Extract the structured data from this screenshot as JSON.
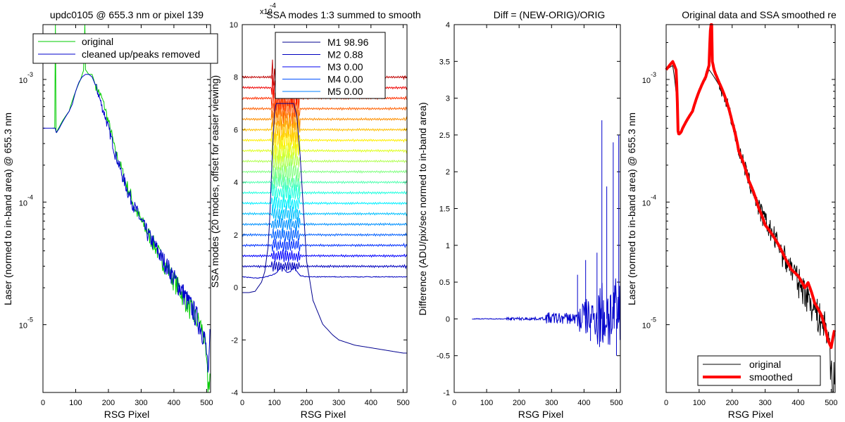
{
  "figure": {
    "background": "#ffffff",
    "axis_color": "#000000"
  },
  "chart_data": [
    {
      "type": "line",
      "title": "updc0105 @ 655.3 nm or pixel 139",
      "xlabel": "RSG Pixel",
      "ylabel": "Laser (normed to in-band area) @ 655.3 nm",
      "yscale": "log",
      "xlim": [
        0,
        512
      ],
      "ylim": [
        2.8e-06,
        0.0028
      ],
      "xticks": [
        0,
        100,
        200,
        300,
        400,
        500
      ],
      "yticks": [
        {
          "value": 0.001,
          "mantissa": "10",
          "exp": "-3"
        },
        {
          "value": 0.0001,
          "mantissa": "10",
          "exp": "-4"
        },
        {
          "value": 1e-05,
          "mantissa": "10",
          "exp": "-5"
        }
      ],
      "legend": {
        "position": "top",
        "entries": [
          {
            "label": "original",
            "color": "#00cc00"
          },
          {
            "label": "cleaned up/peaks removed",
            "color": "#0000cc"
          }
        ]
      },
      "series": [
        {
          "name": "original",
          "color": "#00cc00",
          "x": [
            30,
            34,
            37,
            38,
            40,
            42,
            45,
            50,
            60,
            80,
            100,
            115,
            120,
            125,
            128,
            130,
            140,
            150,
            160,
            180,
            200,
            220,
            250,
            280,
            300,
            330,
            360,
            400,
            430,
            460,
            480,
            490,
            500,
            505,
            510
          ],
          "y": [
            0.0004,
            0.0004,
            0.0004,
            0.0028,
            0.00038,
            0.00037,
            0.00039,
            0.00041,
            0.00046,
            0.00055,
            0.0008,
            0.001,
            0.0011,
            0.0012,
            0.0028,
            0.0012,
            0.0011,
            0.0011,
            0.0009,
            0.0007,
            0.00045,
            0.00026,
            0.00015,
            9e-05,
            7e-05,
            5e-05,
            3.5e-05,
            2.3e-05,
            1.7e-05,
            1.2e-05,
            1e-05,
            8.5e-06,
            4.5e-06,
            3e-06,
            4e-06
          ]
        },
        {
          "name": "cleaned up/peaks removed",
          "color": "#0000cc",
          "x": [
            0,
            20,
            38,
            40,
            42,
            50,
            60,
            70,
            80,
            90,
            100,
            110,
            120,
            130,
            140,
            150,
            160,
            170,
            180,
            200,
            220,
            240,
            260,
            280,
            300,
            320,
            340,
            360,
            380,
            400,
            420,
            440,
            460,
            480,
            490,
            500,
            505,
            510
          ],
          "y": [
            0.0004,
            0.0004,
            0.0004,
            0.00037,
            0.00037,
            0.0004,
            0.00045,
            0.0005,
            0.00055,
            0.00063,
            0.0008,
            0.00095,
            0.00105,
            0.0011,
            0.0011,
            0.00105,
            0.0009,
            0.00075,
            0.0006,
            0.0004,
            0.00025,
            0.00017,
            0.00012,
            9e-05,
            7e-05,
            5.5e-05,
            4.5e-05,
            3.6e-05,
            3e-05,
            2.4e-05,
            2e-05,
            1.6e-05,
            1.3e-05,
            1e-05,
            8.5e-06,
            6e-06,
            3e-06,
            8e-06
          ]
        }
      ]
    },
    {
      "type": "line",
      "title": "SSA modes 1:3 summed to smooth",
      "ylabel": "SSA modes (20 modes, offset for easier viewing)",
      "xlabel": "RSG Pixel",
      "xlim": [
        0,
        512
      ],
      "ylim": [
        -4,
        10
      ],
      "y_multiplier": "x10",
      "y_multiplier_exp": "-4",
      "xticks": [
        0,
        100,
        200,
        300,
        400,
        500
      ],
      "yticks": [
        -4,
        -2,
        0,
        2,
        4,
        6,
        8,
        10
      ],
      "legend": {
        "position": "top",
        "entries": [
          {
            "label": "M1 98.96",
            "color": "#00008f"
          },
          {
            "label": "M2 0.88",
            "color": "#0000bf"
          },
          {
            "label": "M3 0.00",
            "color": "#0000ef"
          },
          {
            "label": "M4 0.00",
            "color": "#0050ff"
          },
          {
            "label": "M5 0.00",
            "color": "#0080ff"
          }
        ]
      },
      "mode1": {
        "x": [
          0,
          20,
          40,
          60,
          70,
          80,
          85,
          90,
          95,
          100,
          105,
          110,
          140,
          160,
          170,
          180,
          190,
          200,
          220,
          250,
          280,
          300,
          350,
          400,
          450,
          500,
          512
        ],
        "y": [
          -0.2,
          -0.2,
          -0.15,
          0.2,
          0.6,
          1.5,
          2.5,
          4,
          5.5,
          6.6,
          7.0,
          7.0,
          7.0,
          7.0,
          6.5,
          5.0,
          3.0,
          1.0,
          -0.5,
          -1.4,
          -1.8,
          -2.0,
          -2.2,
          -2.3,
          -2.4,
          -2.5,
          -2.5
        ]
      },
      "mode2": {
        "x": [
          0,
          50,
          80,
          100,
          110,
          120,
          130,
          140,
          150,
          160,
          170,
          180,
          200,
          300,
          400,
          512
        ],
        "y": [
          0.4,
          0.35,
          0.42,
          0.5,
          0.6,
          0.8,
          0.7,
          0.55,
          0.6,
          0.8,
          0.6,
          0.45,
          0.4,
          0.4,
          0.4,
          0.4
        ]
      },
      "mode_offsets": [
        0.8,
        1.2,
        1.6,
        2.0,
        2.4,
        2.8,
        3.2,
        3.6,
        4.0,
        4.4,
        4.8,
        5.2,
        5.6,
        6.0,
        6.4,
        6.8,
        7.2,
        7.6,
        8.0
      ],
      "mode_colors": [
        "#0000bf",
        "#0000ff",
        "#0030ff",
        "#0060ff",
        "#0090ff",
        "#00c0ff",
        "#00efff",
        "#20ffdf",
        "#50ffaf",
        "#80ff80",
        "#afff50",
        "#dfff20",
        "#ffef00",
        "#ffbf00",
        "#ff9000",
        "#ff6000",
        "#ff3000",
        "#ef0000",
        "#bf0000"
      ]
    },
    {
      "type": "line",
      "title": "Diff = (NEW-ORIG)/ORIG",
      "xlabel": "RSG Pixel",
      "ylabel": "Difference (ADU/pix/sec normed to in-band area)",
      "xlim": [
        0,
        512
      ],
      "ylim": [
        -1,
        4
      ],
      "xticks": [
        0,
        100,
        200,
        300,
        400,
        500
      ],
      "yticks": [
        -1,
        -0.5,
        0,
        0.5,
        1,
        1.5,
        2,
        2.5,
        3,
        3.5,
        4
      ],
      "series": [
        {
          "name": "",
          "color": "#0000cc",
          "spikes": [
            [
              380,
              0.6
            ],
            [
              405,
              0.8
            ],
            [
              420,
              -0.3
            ],
            [
              440,
              0.9
            ],
            [
              455,
              2.7
            ],
            [
              470,
              1.8
            ],
            [
              490,
              2.4
            ],
            [
              500,
              -0.5
            ],
            [
              507,
              2.5
            ],
            [
              512,
              -0.4
            ]
          ]
        }
      ]
    },
    {
      "type": "line",
      "title": "Original data and SSA smoothed re",
      "xlabel": "RSG Pixel",
      "ylabel": "Laser (normed to in-band area) @ 655.3 nm",
      "yscale": "log",
      "xlim": [
        0,
        512
      ],
      "ylim": [
        2.8e-06,
        0.0028
      ],
      "xticks": [
        0,
        100,
        200,
        300,
        400,
        500
      ],
      "yticks": [
        {
          "value": 0.001,
          "mantissa": "10",
          "exp": "-3"
        },
        {
          "value": 0.0001,
          "mantissa": "10",
          "exp": "-4"
        },
        {
          "value": 1e-05,
          "mantissa": "10",
          "exp": "-5"
        }
      ],
      "legend": {
        "position": "bottom-right",
        "entries": [
          {
            "label": "original",
            "color": "#000000"
          },
          {
            "label": "smoothed",
            "color": "#ff0000"
          }
        ]
      },
      "series": [
        {
          "name": "original",
          "color": "#000000",
          "x": [
            0,
            20,
            38,
            40,
            50,
            60,
            80,
            100,
            120,
            130,
            140,
            150,
            160,
            180,
            200,
            220,
            250,
            280,
            300,
            330,
            360,
            400,
            430,
            460,
            480,
            490,
            500,
            505,
            510
          ],
          "y": [
            0.0012,
            0.0013,
            0.00036,
            0.00035,
            0.0004,
            0.00046,
            0.00055,
            0.0008,
            0.001,
            0.0012,
            0.0011,
            0.001,
            0.0009,
            0.0007,
            0.00045,
            0.00026,
            0.00015,
            9e-05,
            7e-05,
            5e-05,
            3.5e-05,
            2.3e-05,
            1.7e-05,
            1.2e-05,
            1e-05,
            8.5e-06,
            4.5e-06,
            3e-06,
            4e-06
          ]
        },
        {
          "name": "smoothed",
          "color": "#ff0000",
          "x": [
            0,
            10,
            20,
            30,
            36,
            38,
            40,
            45,
            50,
            60,
            80,
            100,
            120,
            130,
            135,
            138,
            140,
            145,
            150,
            160,
            180,
            200,
            220,
            250,
            280,
            300,
            330,
            360,
            380,
            400,
            420,
            430,
            450,
            470,
            490,
            500,
            510
          ],
          "y": [
            0.0012,
            0.0013,
            0.0014,
            0.0012,
            0.00038,
            0.00036,
            0.00036,
            0.00037,
            0.0004,
            0.00045,
            0.00055,
            0.0008,
            0.00105,
            0.0013,
            0.0028,
            0.0028,
            0.0014,
            0.0012,
            0.0011,
            0.00095,
            0.0007,
            0.00045,
            0.00026,
            0.00015,
            9e-05,
            6.5e-05,
            5e-05,
            3.5e-05,
            2.8e-05,
            2.5e-05,
            2e-05,
            2.2e-05,
            1.5e-05,
            1.2e-05,
            7.5e-06,
            6.5e-06,
            9e-06
          ]
        }
      ]
    }
  ]
}
